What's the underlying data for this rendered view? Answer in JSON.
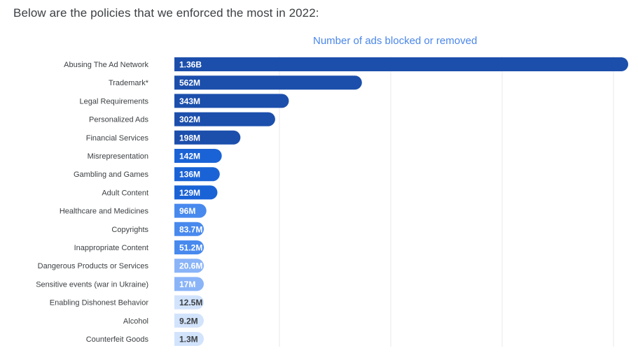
{
  "heading": "Below are the policies that we enforced the most in 2022:",
  "chart_data": {
    "type": "bar",
    "orientation": "horizontal",
    "title": "Number of ads blocked or removed",
    "xlabel": "",
    "ylabel": "",
    "grid": true,
    "categories": [
      "Abusing The Ad Network",
      "Trademark*",
      "Legal Requirements",
      "Personalized Ads",
      "Financial Services",
      "Misrepresentation",
      "Gambling and Games",
      "Adult Content",
      "Healthcare and Medicines",
      "Copyrights",
      "Inappropriate Content",
      "Dangerous Products or Services",
      "Sensitive events (war in Ukraine)",
      "Enabling Dishonest Behavior",
      "Alcohol",
      "Counterfeit Goods"
    ],
    "values": [
      1360000000,
      562000000,
      343000000,
      302000000,
      198000000,
      142000000,
      136000000,
      129000000,
      96000000,
      83700000,
      51200000,
      20600000,
      17000000,
      12500000,
      9200000,
      1300000
    ],
    "value_labels": [
      "1.36B",
      "562M",
      "343M",
      "302M",
      "198M",
      "142M",
      "136M",
      "129M",
      "96M",
      "83.7M",
      "51.2M",
      "20.6M",
      "17M",
      "12.5M",
      "9.2M",
      "1.3M"
    ],
    "bar_colors": [
      "#1c4fac",
      "#1c4fac",
      "#1c4fac",
      "#1c4fac",
      "#1c4fac",
      "#1a63d6",
      "#1a63d6",
      "#1a63d6",
      "#4889ee",
      "#4889ee",
      "#4889ee",
      "#8ab4f8",
      "#8ab4f8",
      "#d2e3fc",
      "#d2e3fc",
      "#d2e3fc"
    ],
    "label_colors": [
      "#ffffff",
      "#ffffff",
      "#ffffff",
      "#ffffff",
      "#ffffff",
      "#ffffff",
      "#ffffff",
      "#ffffff",
      "#ffffff",
      "#ffffff",
      "#ffffff",
      "#ffffff",
      "#ffffff",
      "#3c4043",
      "#3c4043",
      "#3c4043"
    ]
  }
}
